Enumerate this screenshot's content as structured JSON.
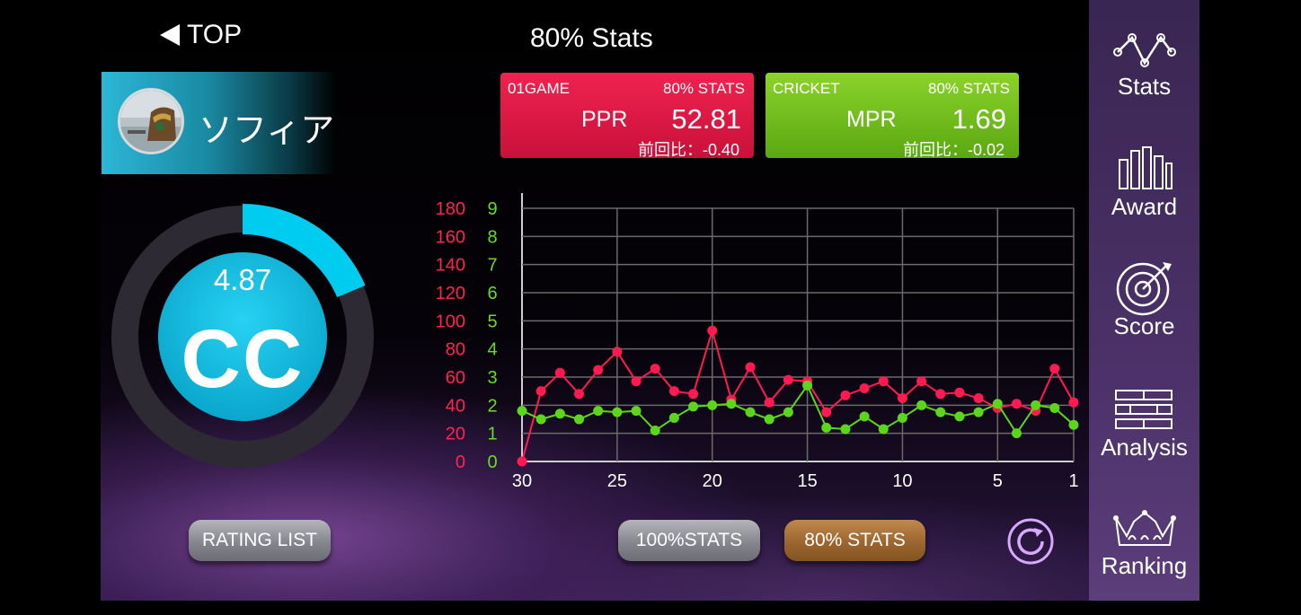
{
  "nav": {
    "back_label": "TOP"
  },
  "page_title": "80% Stats",
  "player": {
    "name": "ソフィア"
  },
  "cards": [
    {
      "game": "01GAME",
      "tag": "80% STATS",
      "metric": "PPR",
      "value": "52.81",
      "diff": "前回比：-0.40",
      "color": "#e0173f"
    },
    {
      "game": "CRICKET",
      "tag": "80% STATS",
      "metric": "MPR",
      "value": "1.69",
      "diff": "前回比：-0.02",
      "color": "#74c01e"
    }
  ],
  "rating": {
    "value": "4.87",
    "class": "CC",
    "progress": 0.187,
    "accent": "#00ccf0"
  },
  "buttons": {
    "rating_list": "RATING LIST",
    "stats100": "100%STATS",
    "stats80": "80% STATS"
  },
  "sidebar": [
    {
      "label": "Stats",
      "icon": "stats-icon"
    },
    {
      "label": "Award",
      "icon": "award-icon"
    },
    {
      "label": "Score",
      "icon": "dartboard-icon"
    },
    {
      "label": "Analysis",
      "icon": "analysis-icon"
    },
    {
      "label": "Ranking",
      "icon": "crown-icon"
    }
  ],
  "chart_data": {
    "type": "line",
    "x_ticks": [
      "30",
      "25",
      "20",
      "15",
      "10",
      "5",
      "1"
    ],
    "x": [
      30,
      29,
      28,
      27,
      26,
      25,
      24,
      23,
      22,
      21,
      20,
      19,
      18,
      17,
      16,
      15,
      14,
      13,
      12,
      11,
      10,
      9,
      8,
      7,
      6,
      5,
      4,
      3,
      2,
      1
    ],
    "series": [
      {
        "axis": "left",
        "color": "#ff1a52",
        "values": [
          0,
          50,
          63,
          48,
          65,
          78,
          57,
          66,
          50,
          48,
          93,
          44,
          67,
          42,
          58,
          57,
          35,
          47,
          52,
          57,
          45,
          57,
          48,
          49,
          45,
          38,
          41,
          36,
          66,
          42
        ]
      },
      {
        "axis": "right",
        "color": "#5cd61a",
        "values": [
          1.8,
          1.5,
          1.7,
          1.5,
          1.8,
          1.75,
          1.8,
          1.1,
          1.55,
          1.95,
          2.0,
          2.05,
          1.75,
          1.5,
          1.75,
          2.7,
          1.2,
          1.15,
          1.6,
          1.15,
          1.55,
          2.0,
          1.75,
          1.6,
          1.75,
          2.05,
          1.0,
          2.0,
          1.9,
          1.3
        ]
      }
    ],
    "y_left": {
      "ticks": [
        "180",
        "160",
        "140",
        "120",
        "100",
        "80",
        "60",
        "40",
        "20",
        "0"
      ],
      "min": 0,
      "max": 180,
      "color": "#ff2450"
    },
    "y_right": {
      "ticks": [
        "9",
        "8",
        "7",
        "6",
        "5",
        "4",
        "3",
        "2",
        "1",
        "0"
      ],
      "min": 0,
      "max": 9,
      "color": "#66dd22"
    },
    "grid": true
  }
}
